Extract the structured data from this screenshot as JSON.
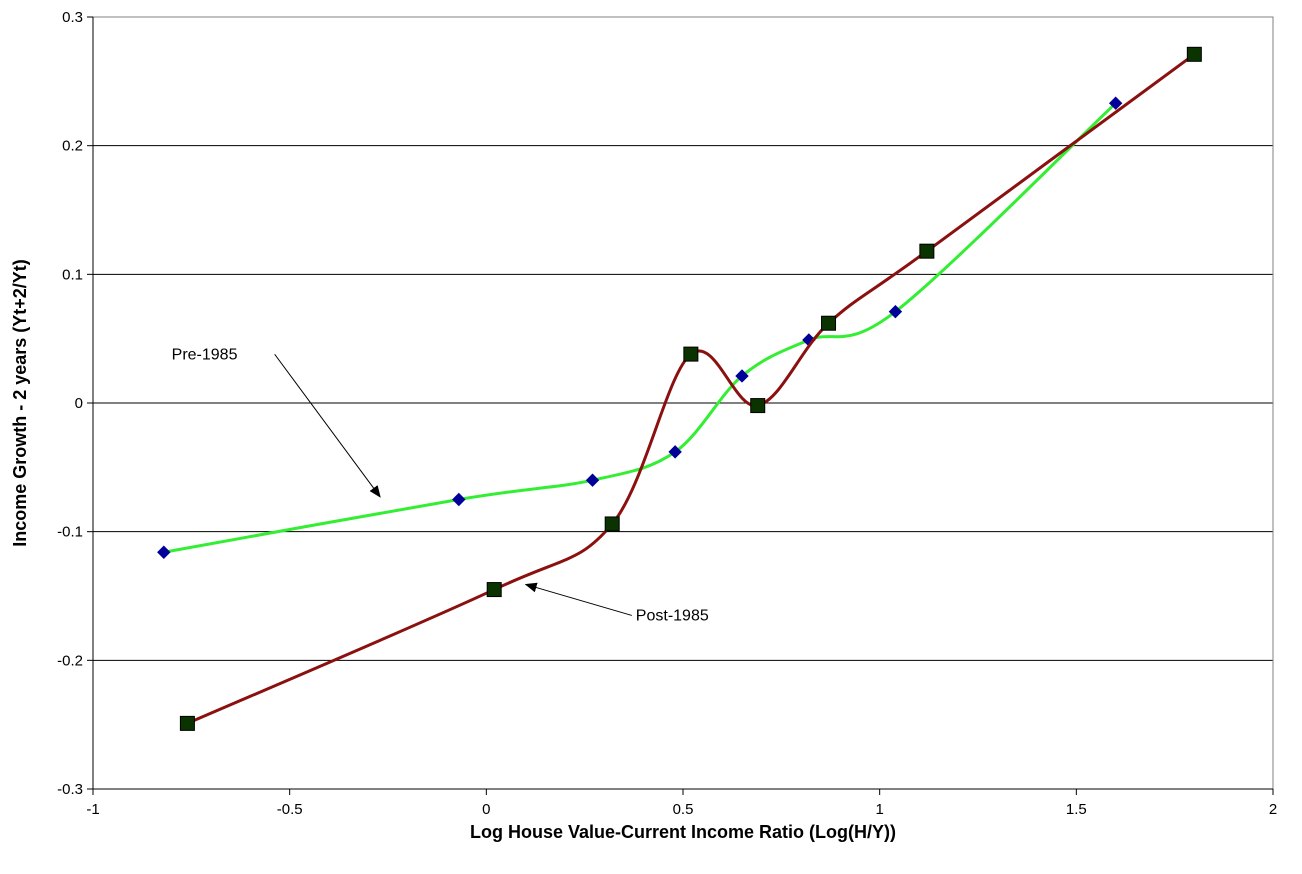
{
  "chart_data": {
    "type": "line",
    "title": "",
    "xlabel": "Log House Value-Current Income Ratio (Log(H/Y))",
    "ylabel": "Income Growth - 2 years (Yt+2/Yt)",
    "xlim": [
      -1,
      2
    ],
    "ylim": [
      -0.3,
      0.3
    ],
    "x_ticks": [
      -1,
      -0.5,
      0,
      0.5,
      1,
      1.5,
      2
    ],
    "x_tick_labels": [
      "-1",
      "-0.5",
      "0",
      "0.5",
      "1",
      "1.5",
      "2"
    ],
    "y_ticks": [
      -0.3,
      -0.2,
      -0.1,
      0,
      0.1,
      0.2,
      0.3
    ],
    "y_tick_labels": [
      "-0.3",
      "-0.2",
      "-0.1",
      "0",
      "0.1",
      "0.2",
      "0.3"
    ],
    "grid": "horizontal",
    "legend": "none",
    "series": [
      {
        "name": "Pre-1985",
        "color": "#33ee33",
        "marker_color": "#000099",
        "marker": "diamond",
        "smooth": true,
        "x": [
          -0.82,
          -0.07,
          0.27,
          0.48,
          0.65,
          0.82,
          1.04,
          1.6
        ],
        "y": [
          -0.116,
          -0.075,
          -0.06,
          -0.038,
          0.021,
          0.049,
          0.071,
          0.233
        ]
      },
      {
        "name": "Post-1985",
        "color": "#8b1010",
        "marker_color": "#0a3300",
        "marker": "square",
        "smooth": true,
        "x": [
          -0.76,
          0.02,
          0.32,
          0.52,
          0.69,
          0.87,
          1.12,
          1.8
        ],
        "y": [
          -0.249,
          -0.145,
          -0.094,
          0.038,
          -0.002,
          0.062,
          0.118,
          0.271
        ]
      }
    ],
    "annotations": [
      {
        "text": "Pre-1985",
        "label_x": -0.8,
        "label_y": 0.034,
        "arrow_to_x": -0.27,
        "arrow_to_y": -0.073
      },
      {
        "text": "Post-1985",
        "label_x": 0.38,
        "label_y": -0.169,
        "arrow_to_x": 0.1,
        "arrow_to_y": -0.141
      }
    ]
  }
}
